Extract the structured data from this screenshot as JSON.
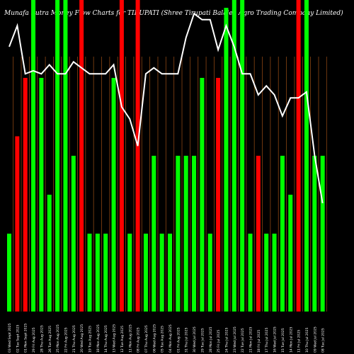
{
  "chart_data": {
    "type": "bar",
    "title": "Munafa Sutra  Money Flow  Charts for TIRUPATI  (Shree   Tirupati Balajee Agro Trading Company Limited)",
    "background": "#000000",
    "colors": {
      "up": "#00ff00",
      "down": "#ff0000",
      "line": "#ffffff",
      "grid": "#8b4513"
    },
    "categories": [
      "03 Wed Sept 2025",
      "02 Tue Sept 2025",
      "01 Mon Sept 2025",
      "29 Fri Aug 2025",
      "28 Thu Aug 2025",
      "26 Tue Aug 2025",
      "25 Mon Aug 2025",
      "22 Fri Aug 2025",
      "21 Thu Aug 2025",
      "20 Wed Aug 2025",
      "19 Tue Aug 2025",
      "18 Mon Aug 2025",
      "14 Thu Aug 2025",
      "13 Wed Aug 2025",
      "12 Tue Aug 2025",
      "11 Mon Aug 2025",
      "08 Fri Aug 2025",
      "07 Thu Aug 2025",
      "06 Wed Aug 2025",
      "05 Tue Aug 2025",
      "04 Mon Aug 2025",
      "01 Fri Aug 2025",
      "31 Thu Jul 2025",
      "30 Wed Jul 2025",
      "29 Tue Jul 2025",
      "28 Mon Jul 2025",
      "25 Fri Jul 2025",
      "24 Thu Jul 2025",
      "23 Wed Jul 2025",
      "22 Tue Jul 2025",
      "21 Mon Jul 2025",
      "18 Fri Jul 2025",
      "17 Thu Jul 2025",
      "16 Wed Jul 2025",
      "15 Tue Jul 2025",
      "14 Mon Jul 2025",
      "11 Fri Jul 2025",
      "10 Thu Jul 2025",
      "09 Wed Jul 2025",
      "08 Tue Jul 2025"
    ],
    "bars": [
      {
        "value": 1,
        "dir": "up"
      },
      {
        "value": 2.25,
        "dir": "down"
      },
      {
        "value": 3,
        "dir": "down"
      },
      {
        "value": 4,
        "dir": "up"
      },
      {
        "value": 3,
        "dir": "up"
      },
      {
        "value": 1.5,
        "dir": "up"
      },
      {
        "value": 4,
        "dir": "up"
      },
      {
        "value": 4,
        "dir": "up"
      },
      {
        "value": 2,
        "dir": "up"
      },
      {
        "value": 4,
        "dir": "down"
      },
      {
        "value": 1,
        "dir": "up"
      },
      {
        "value": 1,
        "dir": "up"
      },
      {
        "value": 1,
        "dir": "up"
      },
      {
        "value": 3,
        "dir": "up"
      },
      {
        "value": 4,
        "dir": "down"
      },
      {
        "value": 1,
        "dir": "up"
      },
      {
        "value": 4,
        "dir": "down"
      },
      {
        "value": 1,
        "dir": "up"
      },
      {
        "value": 2,
        "dir": "up"
      },
      {
        "value": 1,
        "dir": "up"
      },
      {
        "value": 1,
        "dir": "up"
      },
      {
        "value": 2,
        "dir": "up"
      },
      {
        "value": 2,
        "dir": "up"
      },
      {
        "value": 2,
        "dir": "up"
      },
      {
        "value": 3,
        "dir": "up"
      },
      {
        "value": 1,
        "dir": "up"
      },
      {
        "value": 3,
        "dir": "down"
      },
      {
        "value": 3.9,
        "dir": "up"
      },
      {
        "value": 4,
        "dir": "up"
      },
      {
        "value": 4,
        "dir": "up"
      },
      {
        "value": 1,
        "dir": "up"
      },
      {
        "value": 2,
        "dir": "down"
      },
      {
        "value": 1,
        "dir": "up"
      },
      {
        "value": 1,
        "dir": "up"
      },
      {
        "value": 2,
        "dir": "up"
      },
      {
        "value": 1.5,
        "dir": "up"
      },
      {
        "value": 4,
        "dir": "down"
      },
      {
        "value": 4,
        "dir": "up"
      },
      {
        "value": 2,
        "dir": "up"
      },
      {
        "value": 2,
        "dir": "up"
      }
    ],
    "ylim": [
      0,
      4
    ],
    "line": [
      88,
      95,
      79,
      80,
      79,
      82,
      79,
      79,
      83,
      81,
      79,
      79,
      79,
      82,
      68,
      64,
      55,
      79,
      81,
      79,
      79,
      79,
      91,
      99,
      97,
      97,
      87,
      95,
      88,
      79,
      79,
      72,
      75,
      72,
      65,
      71,
      71,
      73,
      52,
      36
    ],
    "line_ylim": [
      0,
      100
    ],
    "grid": true
  }
}
